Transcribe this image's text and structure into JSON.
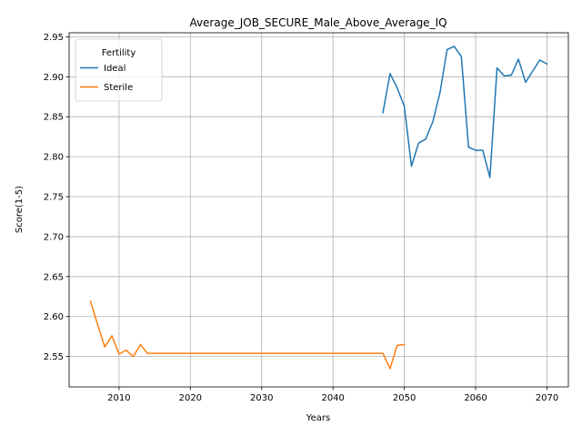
{
  "chart_data": {
    "type": "line",
    "title": "Average_JOB_SECURE_Male_Above_Average_IQ",
    "xlabel": "Years",
    "ylabel": "Score(1-5)",
    "xlim": [
      2003,
      2073
    ],
    "ylim": [
      2.512,
      2.955
    ],
    "xticks": [
      2010,
      2020,
      2030,
      2040,
      2050,
      2060,
      2070
    ],
    "yticks": [
      2.55,
      2.6,
      2.65,
      2.7,
      2.75,
      2.8,
      2.85,
      2.9,
      2.95
    ],
    "ytick_labels": [
      "2.55",
      "2.60",
      "2.65",
      "2.70",
      "2.75",
      "2.80",
      "2.85",
      "2.90",
      "2.95"
    ],
    "grid": true,
    "legend": {
      "title": "Fertility",
      "placement": "top-left"
    },
    "series": [
      {
        "name": "Ideal",
        "color": "#1f77b4",
        "x": [
          2047,
          2048,
          2049,
          2050,
          2051,
          2052,
          2053,
          2054,
          2055,
          2056,
          2057,
          2058,
          2059,
          2060,
          2061,
          2062,
          2063,
          2064,
          2065,
          2066,
          2067,
          2068,
          2069,
          2070
        ],
        "y": [
          2.855,
          2.904,
          2.886,
          2.863,
          2.788,
          2.817,
          2.822,
          2.844,
          2.88,
          2.934,
          2.938,
          2.925,
          2.812,
          2.808,
          2.808,
          2.774,
          2.911,
          2.901,
          2.902,
          2.922,
          2.893,
          2.907,
          2.921,
          2.916
        ]
      },
      {
        "name": "Sterile",
        "color": "#ff7f0e",
        "x": [
          2006,
          2007,
          2008,
          2009,
          2010,
          2011,
          2012,
          2013,
          2014,
          2015,
          2016,
          2017,
          2018,
          2019,
          2020,
          2021,
          2022,
          2023,
          2024,
          2025,
          2026,
          2027,
          2028,
          2029,
          2030,
          2031,
          2032,
          2033,
          2034,
          2035,
          2036,
          2037,
          2038,
          2039,
          2040,
          2041,
          2042,
          2043,
          2044,
          2045,
          2046,
          2047,
          2048,
          2049,
          2050
        ],
        "y": [
          2.619,
          2.59,
          2.562,
          2.576,
          2.553,
          2.558,
          2.55,
          2.565,
          2.554,
          2.554,
          2.554,
          2.554,
          2.554,
          2.554,
          2.554,
          2.554,
          2.554,
          2.554,
          2.554,
          2.554,
          2.554,
          2.554,
          2.554,
          2.554,
          2.554,
          2.554,
          2.554,
          2.554,
          2.554,
          2.554,
          2.554,
          2.554,
          2.554,
          2.554,
          2.554,
          2.554,
          2.554,
          2.554,
          2.554,
          2.554,
          2.554,
          2.554,
          2.535,
          2.564,
          2.565
        ]
      }
    ]
  }
}
